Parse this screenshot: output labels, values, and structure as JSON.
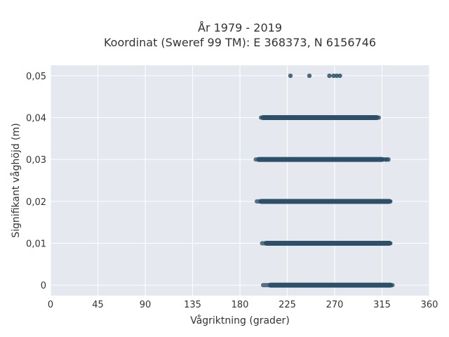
{
  "chart_data": {
    "type": "scatter",
    "title": "År 1979 - 2019",
    "subtitle": "Koordinat (Sweref 99 TM): E 368373, N 6156746",
    "xlabel": "Vågriktning (grader)",
    "ylabel": "Signifikant våghöjd (m)",
    "xlim": [
      0,
      360
    ],
    "ylim": [
      -0.0025,
      0.0525
    ],
    "xticks": [
      0,
      45,
      90,
      135,
      180,
      225,
      270,
      315,
      360
    ],
    "xtick_labels": [
      "0",
      "45",
      "90",
      "135",
      "180",
      "225",
      "270",
      "315",
      "360"
    ],
    "yticks": [
      0,
      0.01,
      0.02,
      0.03,
      0.04,
      0.05
    ],
    "ytick_labels": [
      "0",
      "0,01",
      "0,02",
      "0,03",
      "0,04",
      "0,05"
    ],
    "grid": true,
    "background": "#e5e8ef",
    "marker_color": "#2d5068",
    "series": [
      {
        "bands": [
          {
            "y": 0.0,
            "x_dense": [
              209,
              323
            ],
            "x_range": [
              202,
              325
            ]
          },
          {
            "y": 0.01,
            "x_dense": [
              205,
              322
            ],
            "x_range": [
              201,
              323
            ]
          },
          {
            "y": 0.02,
            "x_dense": [
              200,
              322
            ],
            "x_range": [
              196,
              323
            ]
          },
          {
            "y": 0.03,
            "x_dense": [
              198,
              315
            ],
            "x_range": [
              195,
              319
            ]
          },
          {
            "y": 0.04,
            "x_dense": [
              202,
              310
            ],
            "x_range": [
              200,
              312
            ]
          }
        ],
        "points": [
          {
            "x": 319,
            "y": 0.03
          },
          {
            "x": 321,
            "y": 0.03
          },
          {
            "x": 228,
            "y": 0.05
          },
          {
            "x": 246,
            "y": 0.05
          },
          {
            "x": 265,
            "y": 0.05
          },
          {
            "x": 269,
            "y": 0.05
          },
          {
            "x": 272,
            "y": 0.05
          },
          {
            "x": 275,
            "y": 0.05
          }
        ]
      }
    ]
  }
}
